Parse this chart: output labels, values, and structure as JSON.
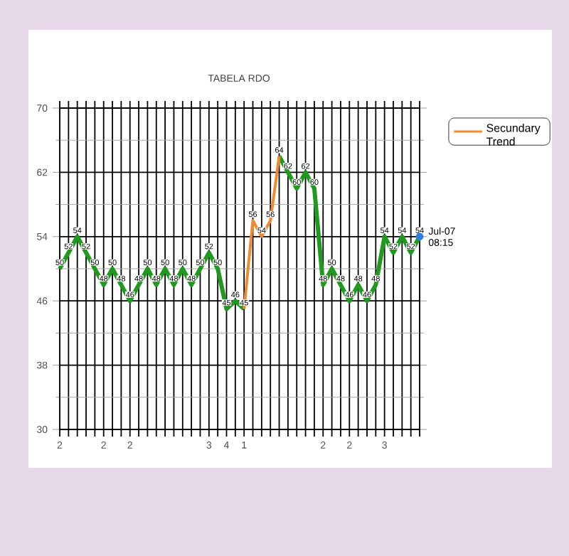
{
  "chart_data": {
    "type": "line",
    "title": "TABELA RDO",
    "categories": [
      "2",
      null,
      null,
      null,
      null,
      "2",
      null,
      null,
      "2",
      null,
      null,
      null,
      null,
      null,
      null,
      null,
      null,
      "3",
      null,
      "4",
      null,
      "1",
      null,
      null,
      null,
      null,
      null,
      null,
      null,
      null,
      "2",
      null,
      null,
      "2",
      null,
      null,
      null,
      "3",
      null,
      null,
      null,
      null
    ],
    "series": [
      {
        "color": "#1f9a1f",
        "values": [
          50,
          52,
          54,
          52,
          50,
          48,
          50,
          48,
          46,
          48,
          50,
          48,
          50,
          48,
          50,
          48,
          50,
          52,
          50,
          45,
          46,
          45,
          null,
          null,
          null,
          64,
          62,
          60,
          62,
          60,
          48,
          50,
          48,
          46,
          48,
          46,
          48,
          54,
          52,
          54,
          52,
          54
        ],
        "value_labels": [
          "50",
          "52",
          "54",
          "52",
          "50",
          "48",
          "50",
          "48",
          "46",
          "48",
          "50",
          "48",
          "50",
          "48",
          "50",
          "48",
          "50",
          "52",
          "50",
          "45",
          "46",
          "45",
          null,
          null,
          null,
          "64",
          "62",
          "60",
          "62",
          "60",
          "48",
          "50",
          "48",
          "46",
          "48",
          "46",
          "48",
          "54",
          "52",
          "54",
          "52",
          "54"
        ]
      },
      {
        "name": "Secundary Trend",
        "color": "#f08a30",
        "values": [
          null,
          null,
          null,
          null,
          null,
          null,
          null,
          null,
          null,
          null,
          null,
          null,
          null,
          null,
          null,
          null,
          null,
          null,
          null,
          null,
          null,
          45,
          56,
          54,
          56,
          64,
          null,
          null,
          null,
          null,
          null,
          null,
          null,
          null,
          null,
          null,
          null,
          null,
          null,
          null,
          null,
          null
        ],
        "value_labels": [
          null,
          null,
          null,
          null,
          null,
          null,
          null,
          null,
          null,
          null,
          null,
          null,
          null,
          null,
          null,
          null,
          null,
          null,
          null,
          null,
          null,
          null,
          "56",
          "54",
          "56",
          null,
          null,
          null,
          null,
          null,
          null,
          null,
          null,
          null,
          null,
          null,
          null,
          null,
          null,
          null,
          null,
          null
        ]
      },
      {
        "type": "scatter",
        "color": "#2a7ee0",
        "values": [
          null,
          null,
          null,
          null,
          null,
          null,
          null,
          null,
          null,
          null,
          null,
          null,
          null,
          null,
          null,
          null,
          null,
          null,
          null,
          null,
          null,
          null,
          null,
          null,
          null,
          null,
          null,
          null,
          null,
          null,
          null,
          null,
          null,
          null,
          null,
          null,
          null,
          null,
          null,
          null,
          null,
          54
        ]
      }
    ],
    "ylim": [
      30,
      70
    ],
    "yticks": [
      30,
      38,
      46,
      54,
      62,
      70
    ],
    "grid": true,
    "legend": "top right",
    "annotations": [
      "Jul-07 08:15"
    ]
  }
}
